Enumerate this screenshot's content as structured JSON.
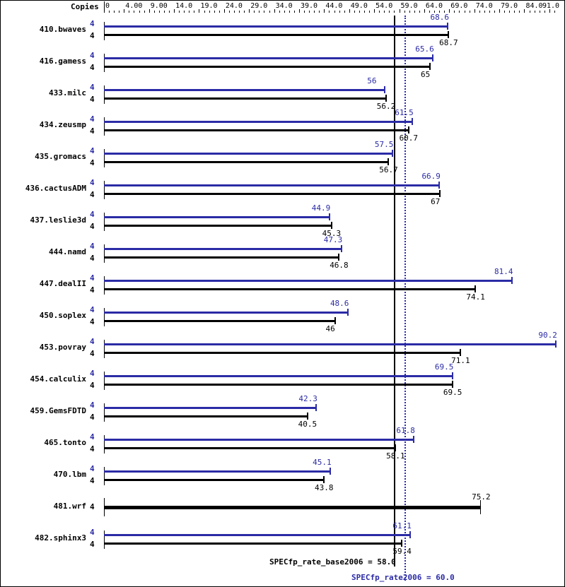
{
  "header": {
    "copies_label": "Copies"
  },
  "colors": {
    "peak": "#2b2ba6",
    "base": "#000000",
    "background": "#ffffff"
  },
  "axis": {
    "ticks": [
      "0",
      "4.00",
      "9.00",
      "14.0",
      "19.0",
      "24.0",
      "29.0",
      "34.0",
      "39.0",
      "44.0",
      "49.0",
      "54.0",
      "59.0",
      "64.0",
      "69.0",
      "74.0",
      "79.0",
      "84.0",
      "91.0"
    ],
    "tick_values": [
      0,
      4,
      9,
      14,
      19,
      24,
      29,
      34,
      39,
      44,
      49,
      54,
      59,
      64,
      69,
      74,
      79,
      84,
      91
    ]
  },
  "summary": {
    "base_label": "SPECfp_rate_base2006 = 58.0",
    "peak_label": "SPECfp_rate2006 = 60.0",
    "base_value": 58.0,
    "peak_value": 60.0
  },
  "chart_data": {
    "type": "bar",
    "orientation": "horizontal",
    "title": "",
    "xlabel": "",
    "ylabel": "",
    "xlim": [
      0,
      91
    ],
    "grid": false,
    "legend": "none (peak in blue, base in black)",
    "categories": [
      "410.bwaves",
      "416.gamess",
      "433.milc",
      "434.zeusmp",
      "435.gromacs",
      "436.cactusADM",
      "437.leslie3d",
      "444.namd",
      "447.dealII",
      "450.soplex",
      "453.povray",
      "454.calculix",
      "459.GemsFDTD",
      "465.tonto",
      "470.lbm",
      "481.wrf",
      "482.sphinx3"
    ],
    "series": [
      {
        "name": "Peak (SPECfp_rate2006)",
        "color": "#2b2ba6",
        "copies": [
          4,
          4,
          4,
          4,
          4,
          4,
          4,
          4,
          4,
          4,
          4,
          4,
          4,
          4,
          4,
          null,
          4
        ],
        "values": [
          68.6,
          65.6,
          56.0,
          61.5,
          57.5,
          66.9,
          44.9,
          47.3,
          81.4,
          48.6,
          90.2,
          69.5,
          42.3,
          61.8,
          45.1,
          null,
          61.1
        ]
      },
      {
        "name": "Base (SPECfp_rate_base2006)",
        "color": "#000000",
        "copies": [
          4,
          4,
          4,
          4,
          4,
          4,
          4,
          4,
          4,
          4,
          4,
          4,
          4,
          4,
          4,
          4,
          4
        ],
        "values": [
          68.7,
          65.0,
          56.2,
          60.7,
          56.7,
          67.0,
          45.3,
          46.8,
          74.1,
          46.0,
          71.1,
          69.5,
          40.5,
          58.1,
          43.8,
          75.2,
          59.4
        ]
      }
    ],
    "reference_lines": [
      {
        "name": "SPECfp_rate_base2006",
        "value": 58.0,
        "style": "solid",
        "color": "#000000"
      },
      {
        "name": "SPECfp_rate2006",
        "value": 60.0,
        "style": "dotted",
        "color": "#2b2ba6"
      }
    ]
  }
}
